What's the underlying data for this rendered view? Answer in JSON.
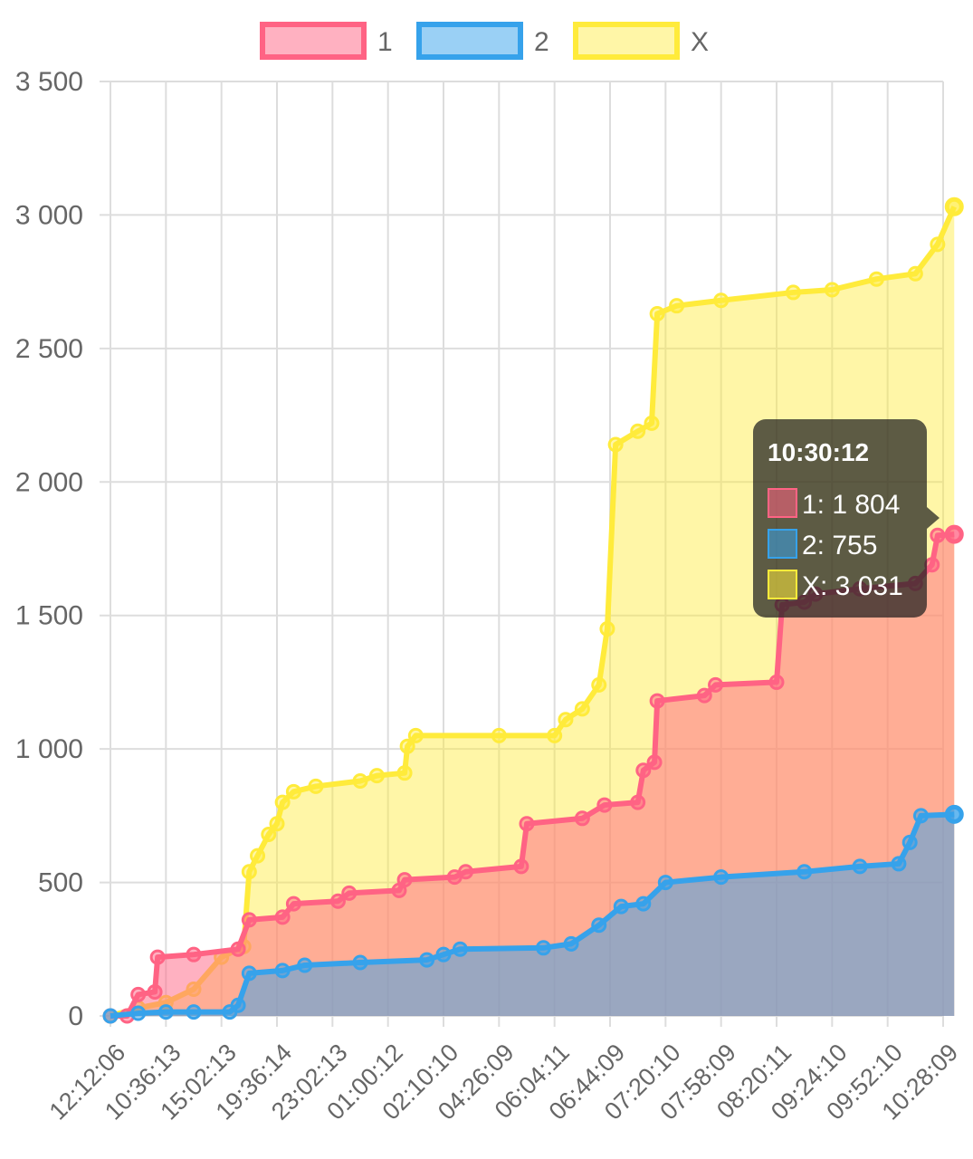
{
  "chart_data": {
    "type": "area",
    "x_tick_labels": [
      "12:12:06",
      "10:36:13",
      "15:02:13",
      "19:36:14",
      "23:02:13",
      "01:00:12",
      "02:10:10",
      "04:26:09",
      "06:04:11",
      "06:44:09",
      "07:20:10",
      "07:58:09",
      "08:20:11",
      "09:24:10",
      "09:52:10",
      "10:28:09"
    ],
    "y_tick_labels": [
      "0",
      "500",
      "1 000",
      "1 500",
      "2 000",
      "2 500",
      "3 000",
      "3 500"
    ],
    "ylim": [
      0,
      3500
    ],
    "grid": true,
    "legend_position": "top",
    "series": [
      {
        "name": "1",
        "color": "#ff6384",
        "fill": "rgba(255,99,132,0.5)",
        "points": [
          [
            0,
            0
          ],
          [
            0.3,
            0
          ],
          [
            0.5,
            80
          ],
          [
            0.8,
            90
          ],
          [
            0.85,
            220
          ],
          [
            1.5,
            230
          ],
          [
            2.3,
            250
          ],
          [
            2.5,
            360
          ],
          [
            3.1,
            370
          ],
          [
            3.3,
            420
          ],
          [
            4.1,
            430
          ],
          [
            4.3,
            460
          ],
          [
            5.2,
            470
          ],
          [
            5.3,
            510
          ],
          [
            6.2,
            520
          ],
          [
            6.4,
            540
          ],
          [
            7.4,
            560
          ],
          [
            7.5,
            720
          ],
          [
            8.5,
            740
          ],
          [
            8.9,
            790
          ],
          [
            9.5,
            800
          ],
          [
            9.6,
            920
          ],
          [
            9.8,
            950
          ],
          [
            9.85,
            1180
          ],
          [
            10.7,
            1200
          ],
          [
            10.9,
            1240
          ],
          [
            12.0,
            1250
          ],
          [
            12.1,
            1540
          ],
          [
            12.5,
            1550
          ],
          [
            12.7,
            1580
          ],
          [
            13.5,
            1600
          ],
          [
            14.5,
            1620
          ],
          [
            14.8,
            1690
          ],
          [
            14.9,
            1800
          ],
          [
            15.2,
            1804
          ]
        ]
      },
      {
        "name": "2",
        "color": "#36a2eb",
        "fill": "rgba(54,162,235,0.5)",
        "points": [
          [
            0,
            0
          ],
          [
            0.5,
            10
          ],
          [
            1.0,
            15
          ],
          [
            1.5,
            15
          ],
          [
            2.15,
            15
          ],
          [
            2.3,
            40
          ],
          [
            2.5,
            160
          ],
          [
            3.1,
            170
          ],
          [
            3.5,
            190
          ],
          [
            4.5,
            200
          ],
          [
            5.7,
            210
          ],
          [
            6.0,
            230
          ],
          [
            6.3,
            250
          ],
          [
            7.8,
            255
          ],
          [
            8.3,
            270
          ],
          [
            8.8,
            340
          ],
          [
            9.2,
            410
          ],
          [
            9.6,
            420
          ],
          [
            10.0,
            500
          ],
          [
            11.0,
            520
          ],
          [
            12.5,
            540
          ],
          [
            13.5,
            560
          ],
          [
            14.2,
            570
          ],
          [
            14.4,
            650
          ],
          [
            14.6,
            750
          ],
          [
            15.2,
            755
          ]
        ]
      },
      {
        "name": "X",
        "color": "#ffeb3b",
        "fill": "rgba(255,235,59,0.45)",
        "points": [
          [
            0,
            0
          ],
          [
            0.5,
            30
          ],
          [
            1.0,
            50
          ],
          [
            1.5,
            100
          ],
          [
            2.0,
            220
          ],
          [
            2.4,
            260
          ],
          [
            2.5,
            540
          ],
          [
            2.65,
            600
          ],
          [
            2.85,
            680
          ],
          [
            3.0,
            720
          ],
          [
            3.1,
            800
          ],
          [
            3.3,
            840
          ],
          [
            3.7,
            860
          ],
          [
            4.5,
            880
          ],
          [
            4.8,
            900
          ],
          [
            5.3,
            910
          ],
          [
            5.35,
            1010
          ],
          [
            5.5,
            1050
          ],
          [
            7.0,
            1050
          ],
          [
            8.0,
            1050
          ],
          [
            8.2,
            1110
          ],
          [
            8.5,
            1150
          ],
          [
            8.8,
            1240
          ],
          [
            8.95,
            1450
          ],
          [
            9.1,
            2140
          ],
          [
            9.5,
            2190
          ],
          [
            9.75,
            2220
          ],
          [
            9.85,
            2630
          ],
          [
            10.2,
            2660
          ],
          [
            11.0,
            2680
          ],
          [
            12.3,
            2710
          ],
          [
            13.0,
            2720
          ],
          [
            13.8,
            2760
          ],
          [
            14.5,
            2780
          ],
          [
            14.9,
            2890
          ],
          [
            15.2,
            3031
          ]
        ]
      }
    ],
    "tooltip": {
      "title": "10:30:12",
      "rows": [
        {
          "label": "1: 1 804",
          "swatch": "rgba(255,99,132,0.55)",
          "border": "#ff6384"
        },
        {
          "label": "2: 755",
          "swatch": "rgba(54,162,235,0.55)",
          "border": "#36a2eb"
        },
        {
          "label": "X: 3 031",
          "swatch": "rgba(255,235,59,0.55)",
          "border": "#ffeb3b"
        }
      ]
    }
  }
}
